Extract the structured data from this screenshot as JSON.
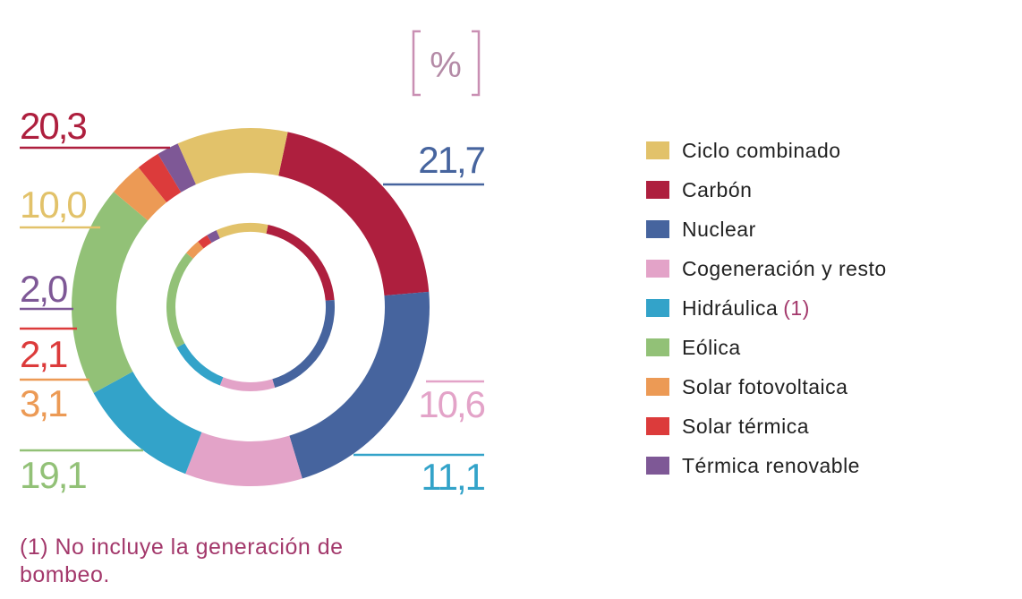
{
  "unit_label": "%",
  "legend": [
    {
      "label": "Ciclo combinado",
      "color": "#e2c26a"
    },
    {
      "label": "Carbón",
      "color": "#ae1f3e"
    },
    {
      "label": "Nuclear",
      "color": "#46649e"
    },
    {
      "label": "Cogeneración y resto",
      "color": "#e3a3c8"
    },
    {
      "label": "Hidráulica",
      "note": "(1)",
      "color": "#33a3c9"
    },
    {
      "label": "Eólica",
      "color": "#92c177"
    },
    {
      "label": "Solar fotovoltaica",
      "color": "#ec9a55"
    },
    {
      "label": "Solar térmica",
      "color": "#dc3b3b"
    },
    {
      "label": "Térmica renovable",
      "color": "#7e5896"
    }
  ],
  "footnote": "(1) No incluye la generación de bombeo.",
  "chart_data": {
    "type": "pie",
    "series": [
      {
        "values": [
          {
            "category": "Carbón",
            "value": 20.3,
            "label": "20,3"
          },
          {
            "category": "Nuclear",
            "value": 21.7,
            "label": "21,7"
          },
          {
            "category": "Cogeneración y resto",
            "value": 10.6,
            "label": "10,6"
          },
          {
            "category": "Hidráulica",
            "value": 11.1,
            "label": "11,1"
          },
          {
            "category": "Eólica",
            "value": 19.1,
            "label": "19,1"
          },
          {
            "category": "Solar fotovoltaica",
            "value": 3.1,
            "label": "3,1"
          },
          {
            "category": "Solar térmica",
            "value": 2.1,
            "label": "2,1"
          },
          {
            "category": "Térmica renovable",
            "value": 2.0,
            "label": "2,0"
          },
          {
            "category": "Ciclo combinado",
            "value": 10.0,
            "label": "10,0"
          }
        ]
      },
      {
        "values": [
          {
            "category": "Carbón",
            "value": 20.3
          },
          {
            "category": "Nuclear",
            "value": 21.7
          },
          {
            "category": "Cogeneración y resto",
            "value": 10.6
          },
          {
            "category": "Hidráulica",
            "value": 11.1
          },
          {
            "category": "Eólica",
            "value": 19.1
          },
          {
            "category": "Solar fotovoltaica",
            "value": 3.1
          },
          {
            "category": "Solar térmica",
            "value": 2.1
          },
          {
            "category": "Térmica renovable",
            "value": 2.0
          },
          {
            "category": "Ciclo combinado",
            "value": 10.0
          }
        ]
      }
    ]
  }
}
